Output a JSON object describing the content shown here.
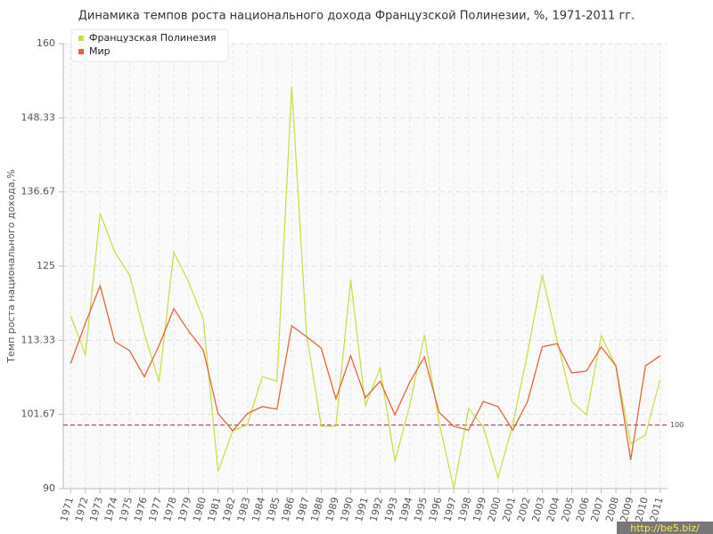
{
  "chart_data": {
    "type": "line",
    "title": "Динамика темпов роста национального дохода Французской Полинезии, %, 1971-2011 гг.",
    "y_label": "Темп роста национального дохода,%",
    "categories": [
      "1971",
      "1972",
      "1973",
      "1974",
      "1975",
      "1976",
      "1977",
      "1978",
      "1979",
      "1980",
      "1981",
      "1982",
      "1983",
      "1984",
      "1985",
      "1986",
      "1987",
      "1988",
      "1989",
      "1990",
      "1991",
      "1992",
      "1993",
      "1994",
      "1995",
      "1996",
      "1997",
      "1998",
      "1999",
      "2000",
      "2001",
      "2002",
      "2003",
      "2004",
      "2005",
      "2006",
      "2007",
      "2008",
      "2009",
      "2010",
      "2011"
    ],
    "series": [
      {
        "name": "Французская Полинезия",
        "color": "#c6e04c",
        "values": [
          117.2,
          111.0,
          133.3,
          127.2,
          123.6,
          114.4,
          106.8,
          127.2,
          122.5,
          116.7,
          92.7,
          99.1,
          100.1,
          107.6,
          106.9,
          153.3,
          114.4,
          99.8,
          99.8,
          122.9,
          103.0,
          109.0,
          94.3,
          103.0,
          114.2,
          100.4,
          90,
          102.6,
          99.7,
          91.7,
          100.1,
          111.3,
          123.6,
          113.4,
          103.7,
          101.6,
          114.1,
          109.2,
          97.1,
          98.4,
          107.2
        ]
      },
      {
        "name": "Мир",
        "color": "#e0663c",
        "values": [
          109.7,
          116.0,
          121.9,
          113.1,
          111.7,
          107.6,
          112.5,
          118.3,
          114.8,
          111.8,
          101.8,
          99.1,
          101.8,
          102.9,
          102.5,
          115.6,
          113.9,
          112.1,
          104.1,
          110.9,
          104.3,
          106.9,
          101.6,
          106.7,
          110.7,
          102.0,
          99.8,
          99.2,
          103.7,
          102.9,
          99.2,
          103.7,
          112.3,
          112.8,
          108.2,
          108.5,
          112.3,
          109.3,
          94.5,
          109.3,
          110.9
        ]
      }
    ],
    "ylim": [
      90,
      160
    ],
    "yticks": [
      90,
      101.67,
      113.33,
      125,
      136.67,
      148.33,
      160
    ],
    "grid": true,
    "legend": "top-left",
    "reference_value": 100,
    "reference_color": "#b04060",
    "watermark": "http://be5.biz/"
  }
}
